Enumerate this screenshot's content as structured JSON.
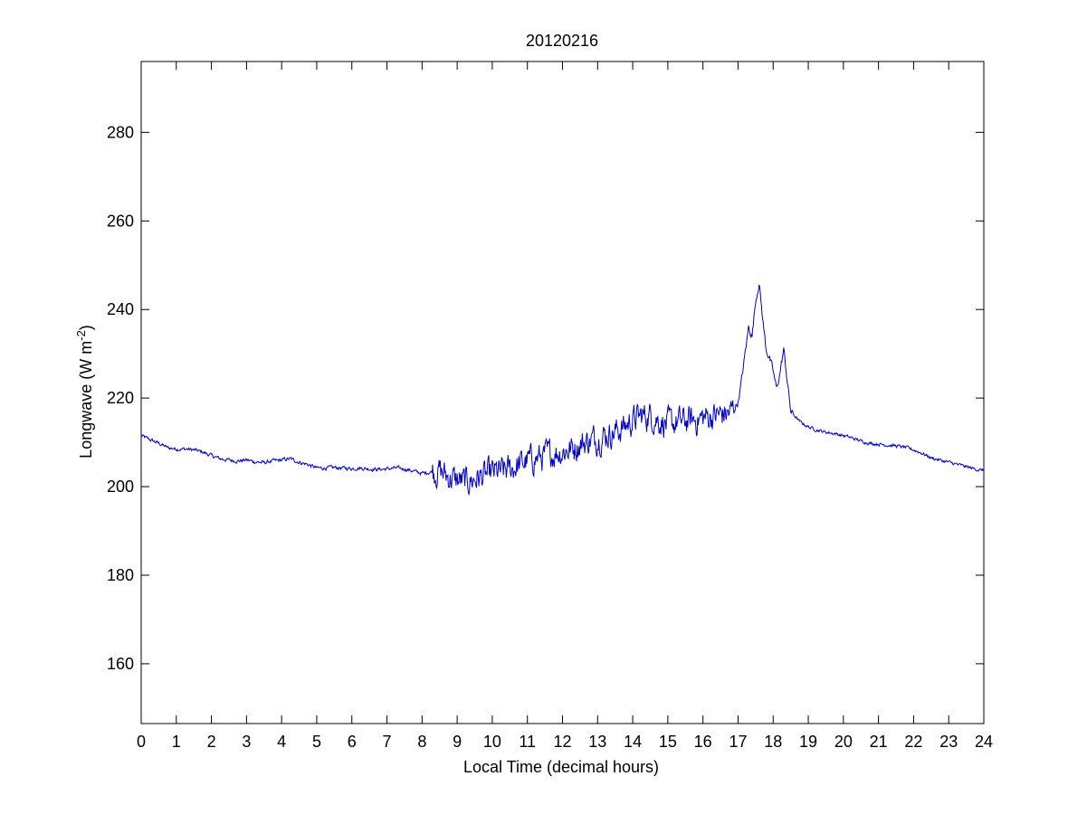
{
  "chart_data": {
    "type": "line",
    "title": "20120216",
    "xlabel": "Local Time (decimal hours)",
    "ylabel": {
      "text": "Longwave (W m",
      "superscript": "-2",
      "close": ")"
    },
    "xlim": [
      0,
      24
    ],
    "ylim": [
      146.5,
      296
    ],
    "x_ticks": [
      0,
      1,
      2,
      3,
      4,
      5,
      6,
      7,
      8,
      9,
      10,
      11,
      12,
      13,
      14,
      15,
      16,
      17,
      18,
      19,
      20,
      21,
      22,
      23,
      24
    ],
    "y_ticks": [
      160,
      180,
      200,
      220,
      240,
      260,
      280
    ],
    "grid": false,
    "line_color": "#0000cc",
    "series": [
      {
        "x": [
          0,
          0.25,
          0.5,
          0.75,
          1,
          1.25,
          1.5,
          1.75,
          2,
          2.25,
          2.5,
          2.75,
          3,
          3.25,
          3.5,
          3.75,
          4,
          4.25,
          4.5,
          4.75,
          5,
          5.25,
          5.5,
          5.75,
          6,
          6.25,
          6.5,
          6.75,
          7,
          7.25,
          7.5,
          7.75,
          8,
          8.25,
          8.5,
          8.75,
          9,
          9.25,
          9.5,
          9.75,
          10,
          10.25,
          10.5,
          10.75,
          11,
          11.25,
          11.5,
          11.75,
          12,
          12.25,
          12.5,
          12.75,
          13,
          13.25,
          13.5,
          13.75,
          14,
          14.25,
          14.5,
          14.75,
          15,
          15.25,
          15.5,
          15.75,
          16,
          16.25,
          16.5,
          16.75,
          17,
          17.1,
          17.2,
          17.3,
          17.4,
          17.5,
          17.6,
          17.7,
          17.8,
          17.9,
          18,
          18.1,
          18.2,
          18.3,
          18.4,
          18.5,
          18.75,
          19,
          19.25,
          19.5,
          19.75,
          20,
          20.25,
          20.5,
          20.75,
          21,
          21.25,
          21.5,
          21.75,
          22,
          22.25,
          22.5,
          22.75,
          23,
          23.25,
          23.5,
          23.75,
          24
        ],
        "y": [
          211.5,
          210.6,
          209.8,
          208.8,
          208.5,
          208.5,
          208.3,
          207.8,
          207,
          206.3,
          206,
          205.8,
          206,
          205.6,
          205.4,
          205.8,
          206,
          206.3,
          205.5,
          205,
          204.2,
          204.2,
          204.3,
          204.2,
          204.1,
          204.2,
          204,
          203.9,
          204,
          204.2,
          204,
          203.5,
          203,
          203.3,
          203.5,
          202.2,
          201.4,
          201,
          201.7,
          202.4,
          203,
          203.3,
          203.9,
          204.9,
          205.8,
          206.4,
          206.9,
          207.6,
          208,
          208.6,
          209.6,
          210.3,
          211,
          211.7,
          212.4,
          213.5,
          215,
          216,
          216,
          215,
          214,
          214.5,
          214.8,
          215,
          215.5,
          215.9,
          216.3,
          216.5,
          219,
          224,
          230,
          236,
          234,
          242,
          246,
          238,
          231,
          229,
          226,
          222,
          226,
          231,
          224,
          217,
          214.7,
          213.5,
          212.8,
          212.3,
          212,
          211.5,
          211,
          210.3,
          209.8,
          209.6,
          209.4,
          209.2,
          208.9,
          208.3,
          207.5,
          206.5,
          206,
          205.5,
          205,
          204.5,
          204,
          203.6
        ]
      }
    ]
  }
}
